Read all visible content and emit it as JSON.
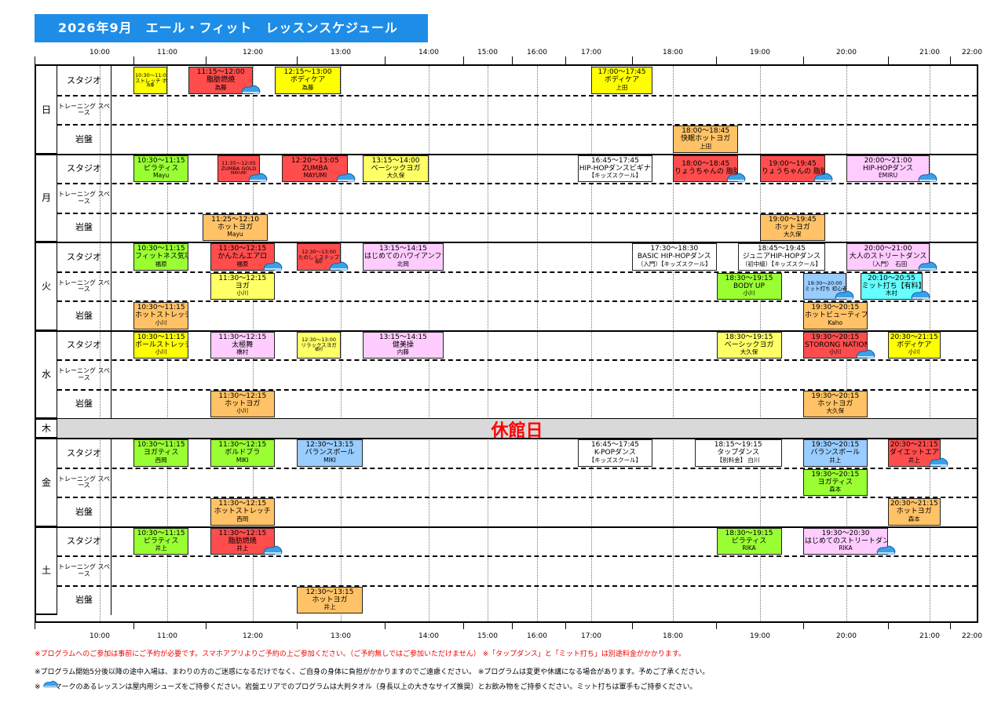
{
  "title": "2026年9月　エール・フィット　レッスンスケジュール",
  "times": [
    "10:00",
    "11:00",
    "12:00",
    "13:00",
    "14:00",
    "15:00",
    "16:00",
    "17:00",
    "18:00",
    "19:00",
    "20:00",
    "21:00",
    "22:00"
  ],
  "areas": {
    "studio": "スタジオ",
    "training": "トレーニング スペース",
    "ganban": "岩盤"
  },
  "closed_day": "木",
  "closed_label": "休館日",
  "days": [
    {
      "name": "日",
      "lessons": [
        {
          "row": 0,
          "time": "10:30〜11:00",
          "name": "ストレッチ ボール",
          "inst": "為藤",
          "color": "#ffff00",
          "s": "10:30",
          "e": "11:00",
          "small": true
        },
        {
          "row": 0,
          "time": "11:15〜12:00",
          "name": "脂肪燃焼",
          "inst": "為藤",
          "color": "#ff4d4d",
          "s": "11:15",
          "e": "12:00",
          "shoe": true
        },
        {
          "row": 0,
          "time": "12:15〜13:00",
          "name": "ボディケア",
          "inst": "為藤",
          "color": "#ffff00",
          "s": "12:15",
          "e": "13:00"
        },
        {
          "row": 0,
          "time": "17:00〜17:45",
          "name": "ボディケア",
          "inst": "上田",
          "color": "#ffff00",
          "s": "17:00",
          "e": "17:45"
        },
        {
          "row": 2,
          "time": "18:00〜18:45",
          "name": "快眠ホットヨガ",
          "inst": "上田",
          "color": "#ffc266",
          "s": "18:00",
          "e": "18:45"
        }
      ]
    },
    {
      "name": "月",
      "lessons": [
        {
          "row": 0,
          "time": "10:30〜11:15",
          "name": "ピラティス",
          "inst": "Mayu",
          "color": "#99ff33",
          "s": "10:30",
          "e": "11:15"
        },
        {
          "row": 0,
          "time": "11:35〜12:05",
          "name": "ZUMBA GOLD",
          "inst": "MAYUMI",
          "color": "#ff4d4d",
          "s": "11:35",
          "e": "12:05",
          "small": true,
          "shoe": true
        },
        {
          "row": 0,
          "time": "12:20〜13:05",
          "name": "ZUMBA",
          "inst": "MAYUMI",
          "color": "#ff4d4d",
          "s": "12:20",
          "e": "13:05",
          "shoe": true
        },
        {
          "row": 0,
          "time": "13:15〜14:00",
          "name": "ベーシックヨガ",
          "inst": "大久保",
          "color": "#ffff66",
          "s": "13:15",
          "e": "14:00"
        },
        {
          "row": 0,
          "time": "16:45〜17:45",
          "name": "HIP-HOPダンスビギナー",
          "inst": "【キッズスクール】",
          "color": "#ffffff",
          "s": "16:45",
          "e": "17:45"
        },
        {
          "row": 0,
          "time": "18:00〜18:45",
          "name": "りょうちゃんの 脂肪燃焼ステップ",
          "inst": "",
          "color": "#ff4d4d",
          "s": "18:00",
          "e": "18:45",
          "shoe": true
        },
        {
          "row": 0,
          "time": "19:00〜19:45",
          "name": "りょうちゃんの 脂肪燃焼エアロ",
          "inst": "",
          "color": "#ff4d4d",
          "s": "19:00",
          "e": "19:45",
          "shoe": true
        },
        {
          "row": 0,
          "time": "20:00〜21:00",
          "name": "HIP-HOPダンス",
          "inst": "EMIRU",
          "color": "#ffccff",
          "s": "20:00",
          "e": "21:00",
          "shoe": true
        },
        {
          "row": 2,
          "time": "11:25〜12:10",
          "name": "ホットヨガ",
          "inst": "Mayu",
          "color": "#ffc266",
          "s": "11:25",
          "e": "12:10"
        },
        {
          "row": 2,
          "time": "19:00〜19:45",
          "name": "ホットヨガ",
          "inst": "大久保",
          "color": "#ffc266",
          "s": "19:00",
          "e": "19:45"
        }
      ]
    },
    {
      "name": "火",
      "lessons": [
        {
          "row": 0,
          "time": "10:30〜11:15",
          "name": "フィットネス気功",
          "inst": "福原",
          "color": "#99ff33",
          "s": "10:30",
          "e": "11:15"
        },
        {
          "row": 0,
          "time": "11:30〜12:15",
          "name": "かんたんエアロ",
          "inst": "福原",
          "color": "#ff4d4d",
          "s": "11:30",
          "e": "12:15",
          "shoe": true
        },
        {
          "row": 0,
          "time": "12:30〜13:00",
          "name": "たのしくステップ",
          "inst": "福原",
          "color": "#ff4d4d",
          "s": "12:30",
          "e": "13:00",
          "small": true,
          "shoe": true
        },
        {
          "row": 0,
          "time": "13:15〜14:15",
          "name": "はじめてのハワイアンフラ",
          "inst": "北岡",
          "color": "#ffccff",
          "s": "13:15",
          "e": "14:15"
        },
        {
          "row": 0,
          "time": "17:30〜18:30",
          "name": "BASIC HIP-HOPダンス",
          "inst": "（入門）【キッズスクール】",
          "color": "#ffffff",
          "s": "17:30",
          "e": "18:30"
        },
        {
          "row": 0,
          "time": "18:45〜19:45",
          "name": "ジュニアHIP-HOPダンス",
          "inst": "（初中級）【キッズスクール】",
          "color": "#ffffff",
          "s": "18:45",
          "e": "19:45"
        },
        {
          "row": 0,
          "time": "20:00〜21:00",
          "name": "大人のストリートダンス",
          "inst": "（入門）　石田",
          "color": "#ffccff",
          "s": "20:00",
          "e": "21:00",
          "shoe": true
        },
        {
          "row": 1,
          "time": "11:30〜12:15",
          "name": "ヨガ",
          "inst": "小川",
          "color": "#ffff66",
          "s": "11:30",
          "e": "12:15"
        },
        {
          "row": 1,
          "time": "18:30〜19:15",
          "name": "BODY UP",
          "inst": "小川",
          "color": "#99ff33",
          "s": "18:30",
          "e": "19:15"
        },
        {
          "row": 1,
          "time": "19:30〜20:00",
          "name": "ミット打ち 初心者講習",
          "inst": "",
          "color": "#99ccff",
          "s": "19:30",
          "e": "20:00",
          "small": true,
          "shoe": true
        },
        {
          "row": 1,
          "time": "20:10〜20:55",
          "name": "ミット打ち【有料】",
          "inst": "木村",
          "color": "#66ffff",
          "s": "20:10",
          "e": "20:55",
          "shoe": true
        },
        {
          "row": 2,
          "time": "10:30〜11:15",
          "name": "ホットストレッチ",
          "inst": "小川",
          "color": "#ffc266",
          "s": "10:30",
          "e": "11:15"
        },
        {
          "row": 2,
          "time": "19:30〜20:15",
          "name": "ホットビューティフ ルボディ",
          "inst": "Kaho",
          "color": "#ffc266",
          "s": "19:30",
          "e": "20:15"
        }
      ]
    },
    {
      "name": "水",
      "lessons": [
        {
          "row": 0,
          "time": "10:30〜11:15",
          "name": "ポールストレッチ",
          "inst": "小川",
          "color": "#ffff00",
          "s": "10:30",
          "e": "11:15"
        },
        {
          "row": 0,
          "time": "11:30〜12:15",
          "name": "太極舞",
          "inst": "橋村",
          "color": "#ffccff",
          "s": "11:30",
          "e": "12:15"
        },
        {
          "row": 0,
          "time": "12:30〜13:00",
          "name": "リラックスヨガ",
          "inst": "橋村",
          "color": "#ffff66",
          "s": "12:30",
          "e": "13:00",
          "small": true
        },
        {
          "row": 0,
          "time": "13:15〜14:15",
          "name": "健美操",
          "inst": "内藤",
          "color": "#ffccff",
          "s": "13:15",
          "e": "14:15"
        },
        {
          "row": 0,
          "time": "18:30〜19:15",
          "name": "ベーシックヨガ",
          "inst": "大久保",
          "color": "#ffff66",
          "s": "18:30",
          "e": "19:15"
        },
        {
          "row": 0,
          "time": "19:30〜20:15",
          "name": "STORONG NATION",
          "inst": "小川",
          "color": "#ff4d4d",
          "s": "19:30",
          "e": "20:15",
          "shoe": true
        },
        {
          "row": 0,
          "time": "20:30〜21:15",
          "name": "ボディケア",
          "inst": "小川",
          "color": "#ffff00",
          "s": "20:30",
          "e": "21:15"
        },
        {
          "row": 2,
          "time": "11:30〜12:15",
          "name": "ホットヨガ",
          "inst": "小川",
          "color": "#ffc266",
          "s": "11:30",
          "e": "12:15"
        },
        {
          "row": 2,
          "time": "19:30〜20:15",
          "name": "ホットヨガ",
          "inst": "大久保",
          "color": "#ffc266",
          "s": "19:30",
          "e": "20:15"
        }
      ]
    },
    {
      "name": "金",
      "lessons": [
        {
          "row": 0,
          "time": "10:30〜11:15",
          "name": "ヨガティス",
          "inst": "西岡",
          "color": "#99ff33",
          "s": "10:30",
          "e": "11:15"
        },
        {
          "row": 0,
          "time": "11:30〜12:15",
          "name": "ボルドブラ",
          "inst": "MIKI",
          "color": "#99ff33",
          "s": "11:30",
          "e": "12:15"
        },
        {
          "row": 0,
          "time": "12:30〜13:15",
          "name": "バランスボール",
          "inst": "MIKI",
          "color": "#99ccff",
          "s": "12:30",
          "e": "13:15"
        },
        {
          "row": 0,
          "time": "16:45〜17:45",
          "name": "K-POPダンス",
          "inst": "【キッズスクール】",
          "color": "#ffffff",
          "s": "16:45",
          "e": "17:45"
        },
        {
          "row": 0,
          "time": "18:15〜19:15",
          "name": "タップダンス",
          "inst": "【別料金】 白川",
          "color": "#ffffff",
          "s": "18:15",
          "e": "19:15"
        },
        {
          "row": 0,
          "time": "19:30〜20:15",
          "name": "バランスボール",
          "inst": "井上",
          "color": "#99ccff",
          "s": "19:30",
          "e": "20:15"
        },
        {
          "row": 0,
          "time": "20:30〜21:15",
          "name": "ダイエットエアロ",
          "inst": "井上",
          "color": "#ff4d4d",
          "s": "20:30",
          "e": "21:15",
          "shoe": true
        },
        {
          "row": 1,
          "time": "19:30〜20:15",
          "name": "ヨガティス",
          "inst": "森本",
          "color": "#99ff33",
          "s": "19:30",
          "e": "20:15"
        },
        {
          "row": 2,
          "time": "11:30〜12:15",
          "name": "ホットストレッチ",
          "inst": "西岡",
          "color": "#ffc266",
          "s": "11:30",
          "e": "12:15"
        },
        {
          "row": 2,
          "time": "20:30〜21:15",
          "name": "ホットヨガ",
          "inst": "森本",
          "color": "#ffc266",
          "s": "20:30",
          "e": "21:15"
        }
      ]
    },
    {
      "name": "土",
      "lessons": [
        {
          "row": 0,
          "time": "10:30〜11:15",
          "name": "ピラティス",
          "inst": "井上",
          "color": "#99ff33",
          "s": "10:30",
          "e": "11:15"
        },
        {
          "row": 0,
          "time": "11:30〜12:15",
          "name": "脂肪燃焼",
          "inst": "井上",
          "color": "#ff4d4d",
          "s": "11:30",
          "e": "12:15",
          "shoe": true
        },
        {
          "row": 0,
          "time": "18:30〜19:15",
          "name": "ピラティス",
          "inst": "RIKA",
          "color": "#99ff33",
          "s": "18:30",
          "e": "19:15"
        },
        {
          "row": 0,
          "time": "19:30〜20:30",
          "name": "はじめてのストリートダンス",
          "inst": "RIKA",
          "color": "#ffccff",
          "s": "19:30",
          "e": "20:30",
          "shoe": true
        },
        {
          "row": 2,
          "time": "12:30〜13:15",
          "name": "ホットヨガ",
          "inst": "井上",
          "color": "#ffc266",
          "s": "12:30",
          "e": "13:15"
        }
      ]
    }
  ],
  "notes": [
    "※プログラムへのご参加は事前にご予約が必要です。スマホアプリよりご予約の上ご参加ください。（ご予約無しではご参加いただけません） ※「タップダンス」と「ミット打ち」は別途料金がかかります。",
    "※プログラム開始5分後以降の途中入場は、まわりの方のご迷惑になるだけでなく、ご自身の身体に負担がかかりますのでご遠慮ください。 ※プログラムは変更や休講になる場合があります。予めご了承ください。",
    "※　　マークのあるレッスンは屋内用シューズをご持参ください。岩盤エリアでのプログラムは大判タオル（身長以上の大きなサイズ推奨）とお飲み物をご持参ください。ミット打ちは軍手もご持参ください。"
  ]
}
